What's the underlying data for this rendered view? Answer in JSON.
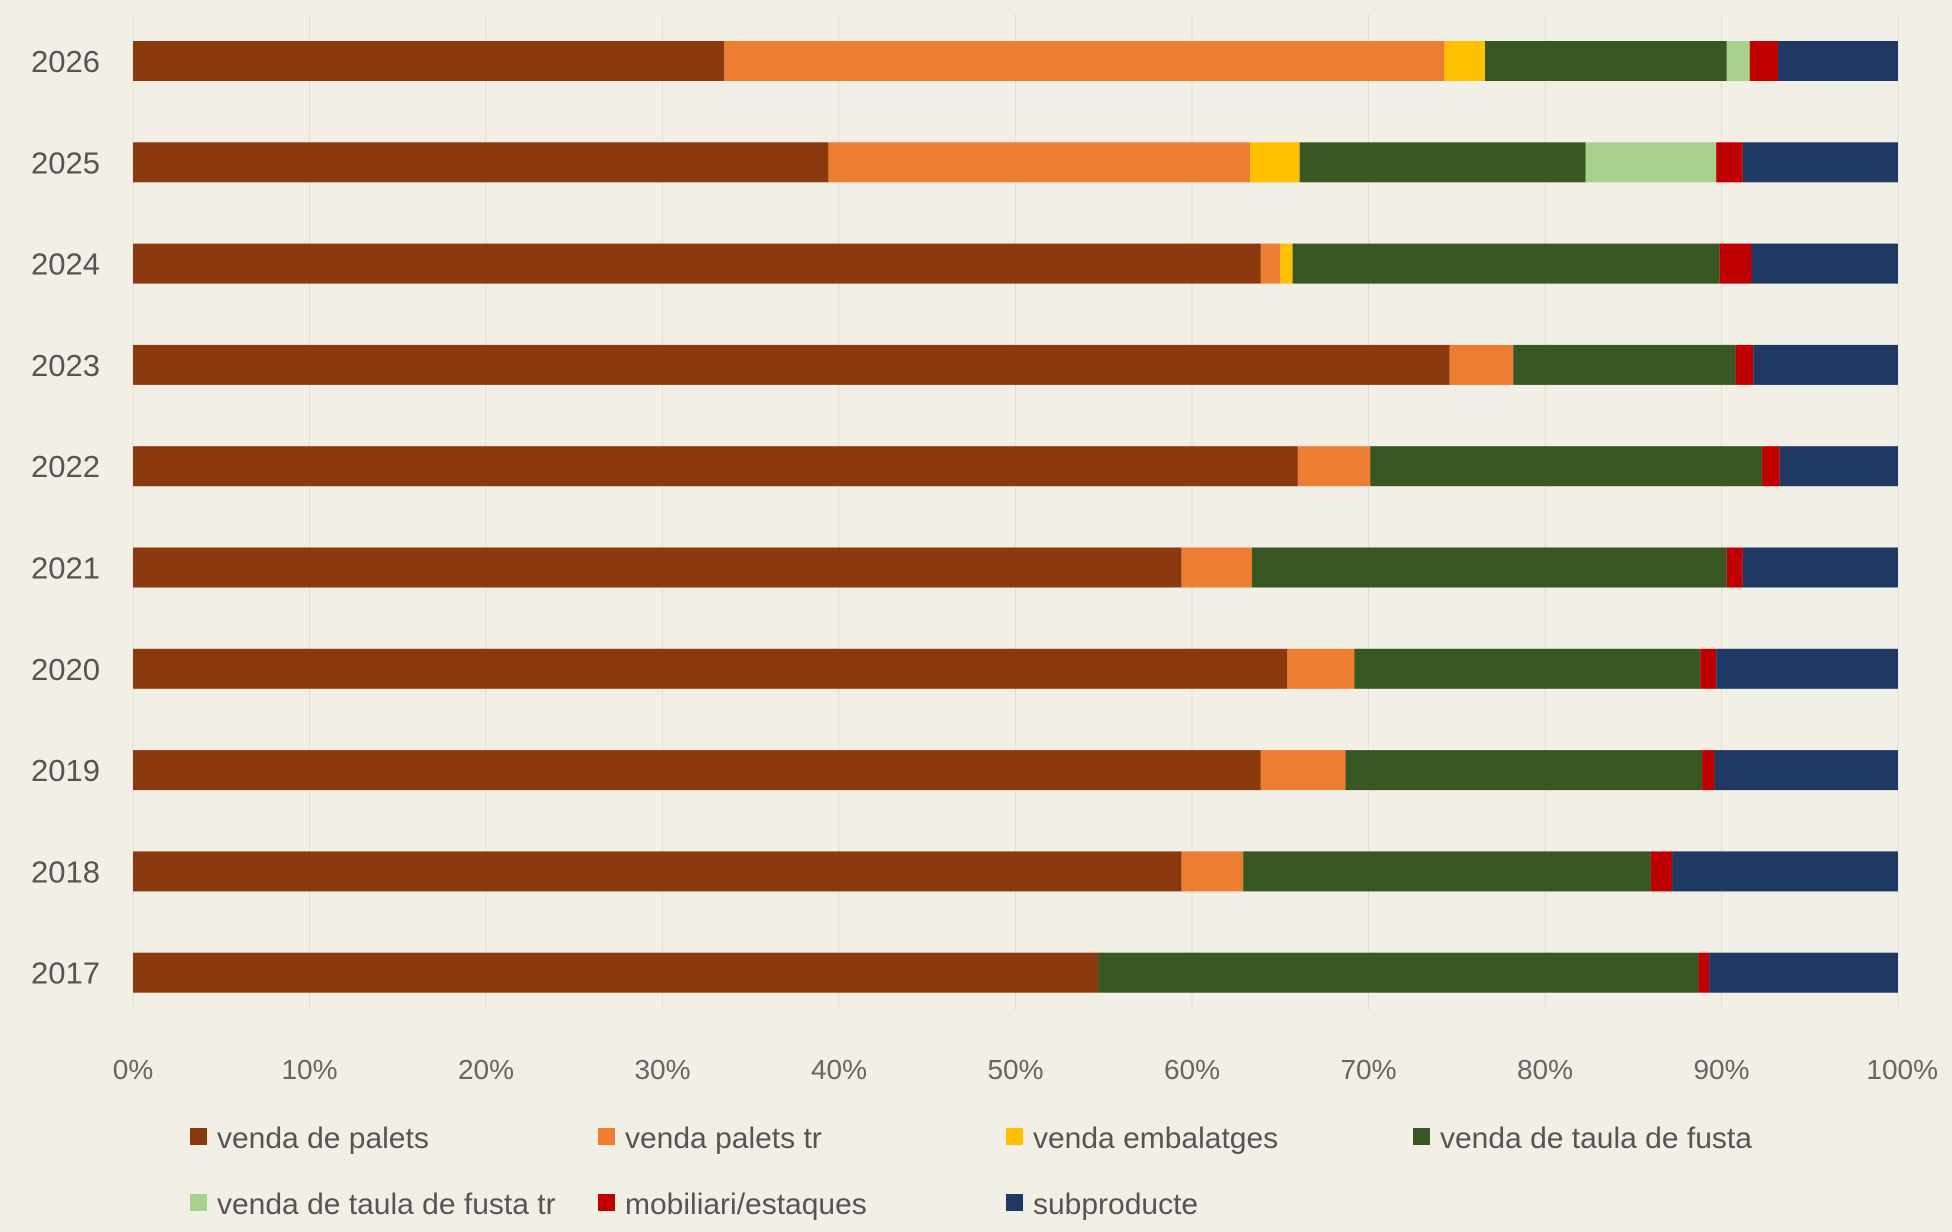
{
  "chart_data": {
    "type": "bar",
    "orientation": "horizontal",
    "stacked": "percent",
    "categories": [
      "2026",
      "2025",
      "2024",
      "2023",
      "2022",
      "2021",
      "2020",
      "2019",
      "2018",
      "2017"
    ],
    "xlim": [
      0,
      100
    ],
    "x_ticks": [
      "0%",
      "10%",
      "20%",
      "30%",
      "40%",
      "50%",
      "60%",
      "70%",
      "80%",
      "90%",
      "100%"
    ],
    "grid": "vertical, faint",
    "legend_position": "bottom",
    "series": [
      {
        "name": "venda de palets",
        "color": "#8b3a0f",
        "values": [
          33.5,
          39.4,
          63.9,
          74.6,
          66.0,
          59.4,
          65.4,
          63.9,
          59.4,
          54.7
        ]
      },
      {
        "name": "venda palets tr",
        "color": "#ed7d31",
        "values": [
          40.8,
          23.9,
          1.1,
          3.6,
          4.1,
          4.0,
          3.8,
          4.8,
          3.5,
          0
        ]
      },
      {
        "name": "venda embalatges",
        "color": "#ffc000",
        "values": [
          2.3,
          2.8,
          0.7,
          0,
          0,
          0,
          0,
          0,
          0,
          0
        ]
      },
      {
        "name": "venda de taula de fusta",
        "color": "#385723",
        "values": [
          13.7,
          16.2,
          24.2,
          12.6,
          22.2,
          26.9,
          19.6,
          20.2,
          23.1,
          34.0
        ]
      },
      {
        "name": "venda de taula de fusta tr",
        "color": "#a9d18e",
        "values": [
          1.3,
          7.4,
          0,
          0,
          0,
          0,
          0,
          0,
          0,
          0
        ]
      },
      {
        "name": "mobiliari/estaques",
        "color": "#c00000",
        "values": [
          1.6,
          1.5,
          1.8,
          1.0,
          1.0,
          0.9,
          0.9,
          0.7,
          1.2,
          0.6
        ]
      },
      {
        "name": "subproducte",
        "color": "#203864",
        "values": [
          6.8,
          8.8,
          8.3,
          8.2,
          6.7,
          8.8,
          10.3,
          10.4,
          12.8,
          10.7
        ]
      }
    ]
  }
}
